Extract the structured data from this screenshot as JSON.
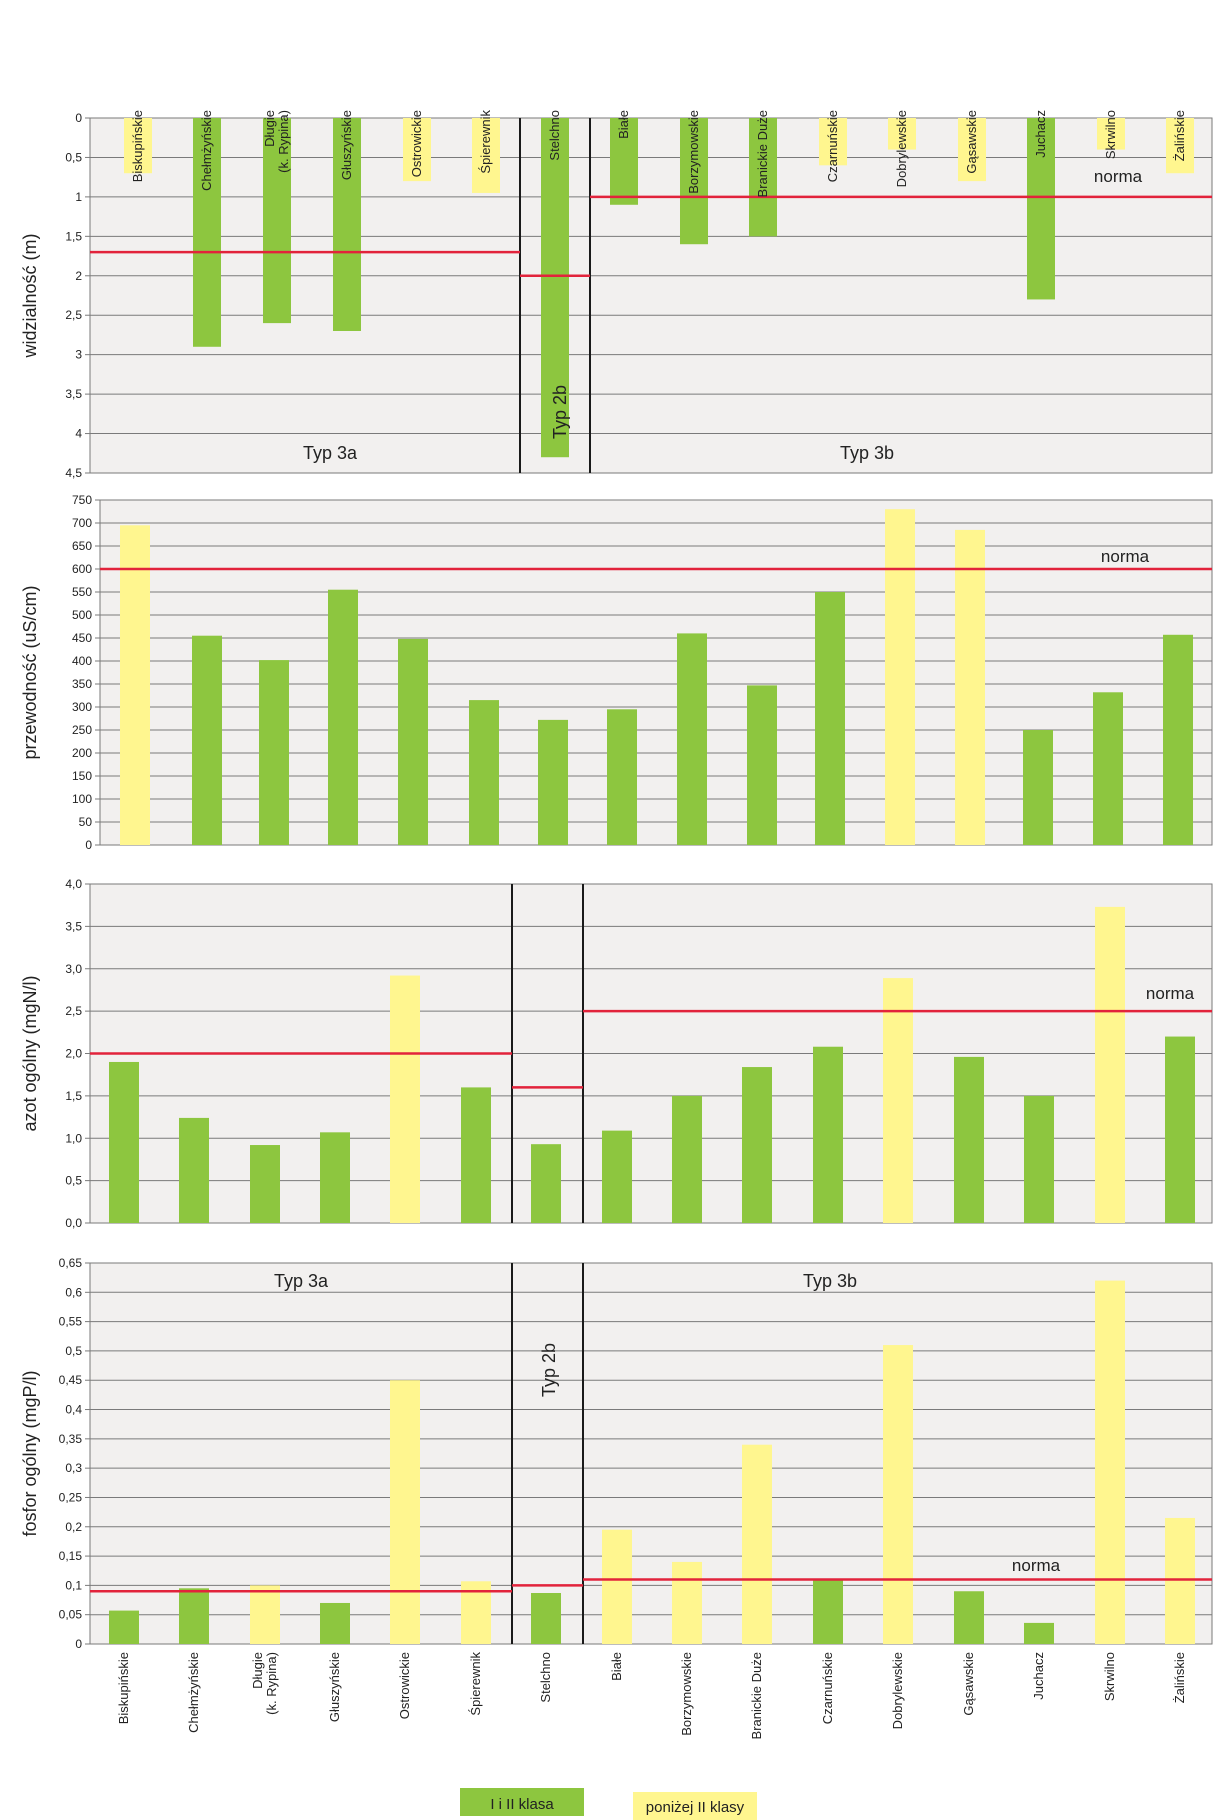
{
  "colors": {
    "green": "#8dc63f",
    "yellow": "#fff68f",
    "norma": "#e2233b",
    "plot_bg": "#f2f0ef",
    "grid": "#7a7a7a",
    "divider": "#1a1a1a"
  },
  "lakes": [
    "Biskupińskie",
    "Chełmżyńskie",
    "Długie (k. Rypina)",
    "Głuszyńskie",
    "Ostrowickie",
    "Śpierewnik",
    "Stelchno",
    "Białe",
    "Borzymowskie",
    "Branickie Duże",
    "Czarnuńskie",
    "Dobrylewskie",
    "Gąsawskie",
    "Juchacz",
    "Skrwilno",
    "Żalińskie"
  ],
  "lake_labels": [
    [
      "Biskupińskie"
    ],
    [
      "Chełmżyńskie"
    ],
    [
      "Długie",
      "(k. Rypina)"
    ],
    [
      "Głuszyńskie"
    ],
    [
      "Ostrowickie"
    ],
    [
      "Śpierewnik"
    ],
    [
      "Stelchno"
    ],
    [
      "Białe"
    ],
    [
      "Borzymowskie"
    ],
    [
      "Branickie Duże"
    ],
    [
      "Czarnuńskie"
    ],
    [
      "Dobrylewskie"
    ],
    [
      "Gąsawskie"
    ],
    [
      "Juchacz"
    ],
    [
      "Skrwilno"
    ],
    [
      "Żalińskie"
    ]
  ],
  "legend": {
    "green_label": "I i II klasa",
    "yellow_label": "poniżej II klasy"
  },
  "chart_data": [
    {
      "type": "bar",
      "ylabel": "widzialność (m)",
      "ylim": [
        0,
        4.5
      ],
      "y_inverted": true,
      "yticks": [
        "0",
        "0,5",
        "1",
        "1,5",
        "2",
        "2,5",
        "3",
        "3,5",
        "4",
        "4,5"
      ],
      "values": [
        0.7,
        2.9,
        2.6,
        2.7,
        0.8,
        0.95,
        4.3,
        1.1,
        1.6,
        1.5,
        0.6,
        0.4,
        0.8,
        2.3,
        0.4,
        0.7
      ],
      "classes": [
        "yellow",
        "green",
        "green",
        "green",
        "yellow",
        "yellow",
        "green",
        "green",
        "green",
        "green",
        "yellow",
        "yellow",
        "yellow",
        "green",
        "yellow",
        "yellow"
      ],
      "norma": [
        1.7,
        2.0,
        1.0
      ],
      "norma_label": "norma",
      "group_labels": [
        "Typ 3a",
        "Typ 2b",
        "Typ 3b"
      ]
    },
    {
      "type": "bar",
      "ylabel": "przewodność (uS/cm)",
      "ylim": [
        0,
        750
      ],
      "yticks": [
        "0",
        "50",
        "100",
        "150",
        "200",
        "250",
        "300",
        "350",
        "400",
        "450",
        "500",
        "550",
        "600",
        "650",
        "700",
        "750"
      ],
      "values": [
        695,
        455,
        402,
        555,
        448,
        315,
        272,
        295,
        460,
        347,
        550,
        730,
        685,
        250,
        332,
        457
      ],
      "classes": [
        "yellow",
        "green",
        "green",
        "green",
        "green",
        "green",
        "green",
        "green",
        "green",
        "green",
        "green",
        "yellow",
        "yellow",
        "green",
        "green",
        "green"
      ],
      "norma": [
        600
      ],
      "norma_label": "norma"
    },
    {
      "type": "bar",
      "ylabel": "azot ogólny (mgN/l)",
      "ylim": [
        0,
        4.0
      ],
      "yticks": [
        "0,0",
        "0,5",
        "1,0",
        "1,5",
        "2,0",
        "2,5",
        "3,0",
        "3,5",
        "4,0"
      ],
      "values": [
        1.9,
        1.24,
        0.92,
        1.07,
        2.92,
        1.6,
        0.93,
        1.09,
        1.5,
        1.84,
        2.08,
        2.89,
        1.96,
        1.5,
        3.73,
        2.2
      ],
      "classes": [
        "green",
        "green",
        "green",
        "green",
        "yellow",
        "green",
        "green",
        "green",
        "green",
        "green",
        "green",
        "yellow",
        "green",
        "green",
        "yellow",
        "green"
      ],
      "norma": [
        2.0,
        1.6,
        2.5
      ],
      "norma_label": "norma"
    },
    {
      "type": "bar",
      "ylabel": "fosfor ogólny (mgP/l)",
      "ylim": [
        0,
        0.65
      ],
      "yticks": [
        "0",
        "0,05",
        "0,1",
        "0,15",
        "0,2",
        "0,25",
        "0,3",
        "0,35",
        "0,4",
        "0,45",
        "0,5",
        "0,55",
        "0,6",
        "0,65"
      ],
      "values": [
        0.057,
        0.095,
        0.1,
        0.07,
        0.45,
        0.107,
        0.087,
        0.195,
        0.14,
        0.34,
        0.11,
        0.51,
        0.09,
        0.036,
        0.62,
        0.215
      ],
      "classes": [
        "green",
        "green",
        "yellow",
        "green",
        "yellow",
        "yellow",
        "green",
        "yellow",
        "yellow",
        "yellow",
        "green",
        "yellow",
        "green",
        "green",
        "yellow",
        "yellow"
      ],
      "norma": [
        0.09,
        0.1,
        0.11
      ],
      "norma_label": "norma",
      "group_labels": [
        "Typ 3a",
        "Typ 2b",
        "Typ 3b"
      ]
    }
  ]
}
